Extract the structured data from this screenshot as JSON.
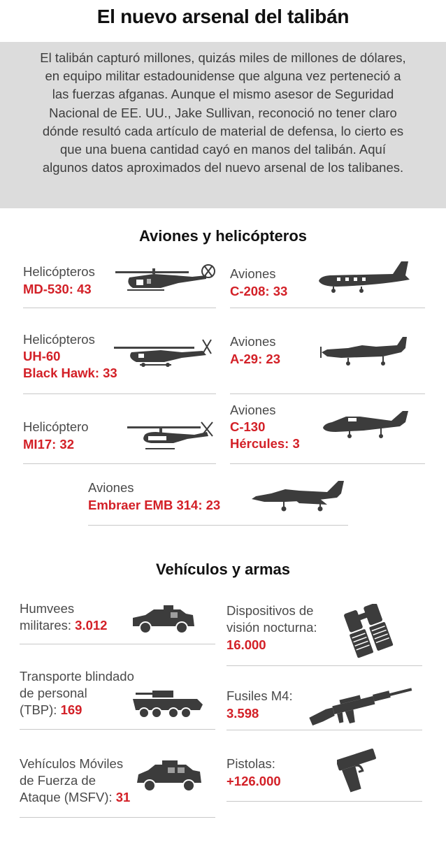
{
  "title": "El nuevo arsenal del talibán",
  "intro": "El talibán capturó millones, quizás miles de millones de dólares, en equipo militar estadounidense que alguna vez perteneció a las fuerzas afganas. Aunque el mismo asesor de Seguridad Nacional de EE. UU., Jake Sullivan, reconoció no tener claro dónde resultó cada artículo de material de defensa, lo cierto es que una buena cantidad cayó en manos del talibán. Aquí algunos datos aproximados del nuevo arsenal de los talibanes.",
  "aircraft": {
    "heading": "Aviones y helicópteros",
    "items": [
      {
        "category": "Helicópteros",
        "line1": "MD-530: 43",
        "line2": ""
      },
      {
        "category": "Aviones",
        "line1": "C-208: 33",
        "line2": ""
      },
      {
        "category": "Helicópteros",
        "line1": "UH-60",
        "line2": "Black Hawk: 33"
      },
      {
        "category": "Aviones",
        "line1": "A-29: 23",
        "line2": ""
      },
      {
        "category": "Helicóptero",
        "line1": "MI17: 32",
        "line2": ""
      },
      {
        "category": "Aviones",
        "line1": "C-130",
        "line2": "Hércules: 3"
      },
      {
        "category": "Aviones",
        "line1": "Embraer EMB 314: 23",
        "line2": ""
      }
    ]
  },
  "vehicles": {
    "heading": "Vehículos y armas",
    "items": [
      {
        "label_a": "Humvees",
        "label_b": "militares: ",
        "value": "3.012"
      },
      {
        "label_a": "Dispositivos de",
        "label_b": "visión nocturna:",
        "value": "16.000"
      },
      {
        "label_a": "Transporte blindado",
        "label_b": "de personal",
        "label_c": "(TBP): ",
        "value": "169"
      },
      {
        "label_a": "Fusiles M4:",
        "value": "3.598"
      },
      {
        "label_a": "Vehículos Móviles",
        "label_b": "de Fuerza de",
        "label_c": "Ataque (MSFV): ",
        "value": "31"
      },
      {
        "label_a": "Pistolas:",
        "value": "+126.000"
      }
    ]
  },
  "colors": {
    "accent": "#d32027",
    "panel": "#dcdcdc",
    "silhouette": "#3c3c3c"
  },
  "icons": [
    "md530-helicopter-icon",
    "c208-plane-icon",
    "blackhawk-helicopter-icon",
    "a29-plane-icon",
    "mi17-helicopter-icon",
    "c130-plane-icon",
    "emb314-plane-icon",
    "humvee-icon",
    "binoculars-icon",
    "apc-icon",
    "rifle-icon",
    "msfv-vehicle-icon",
    "pistol-icon"
  ]
}
